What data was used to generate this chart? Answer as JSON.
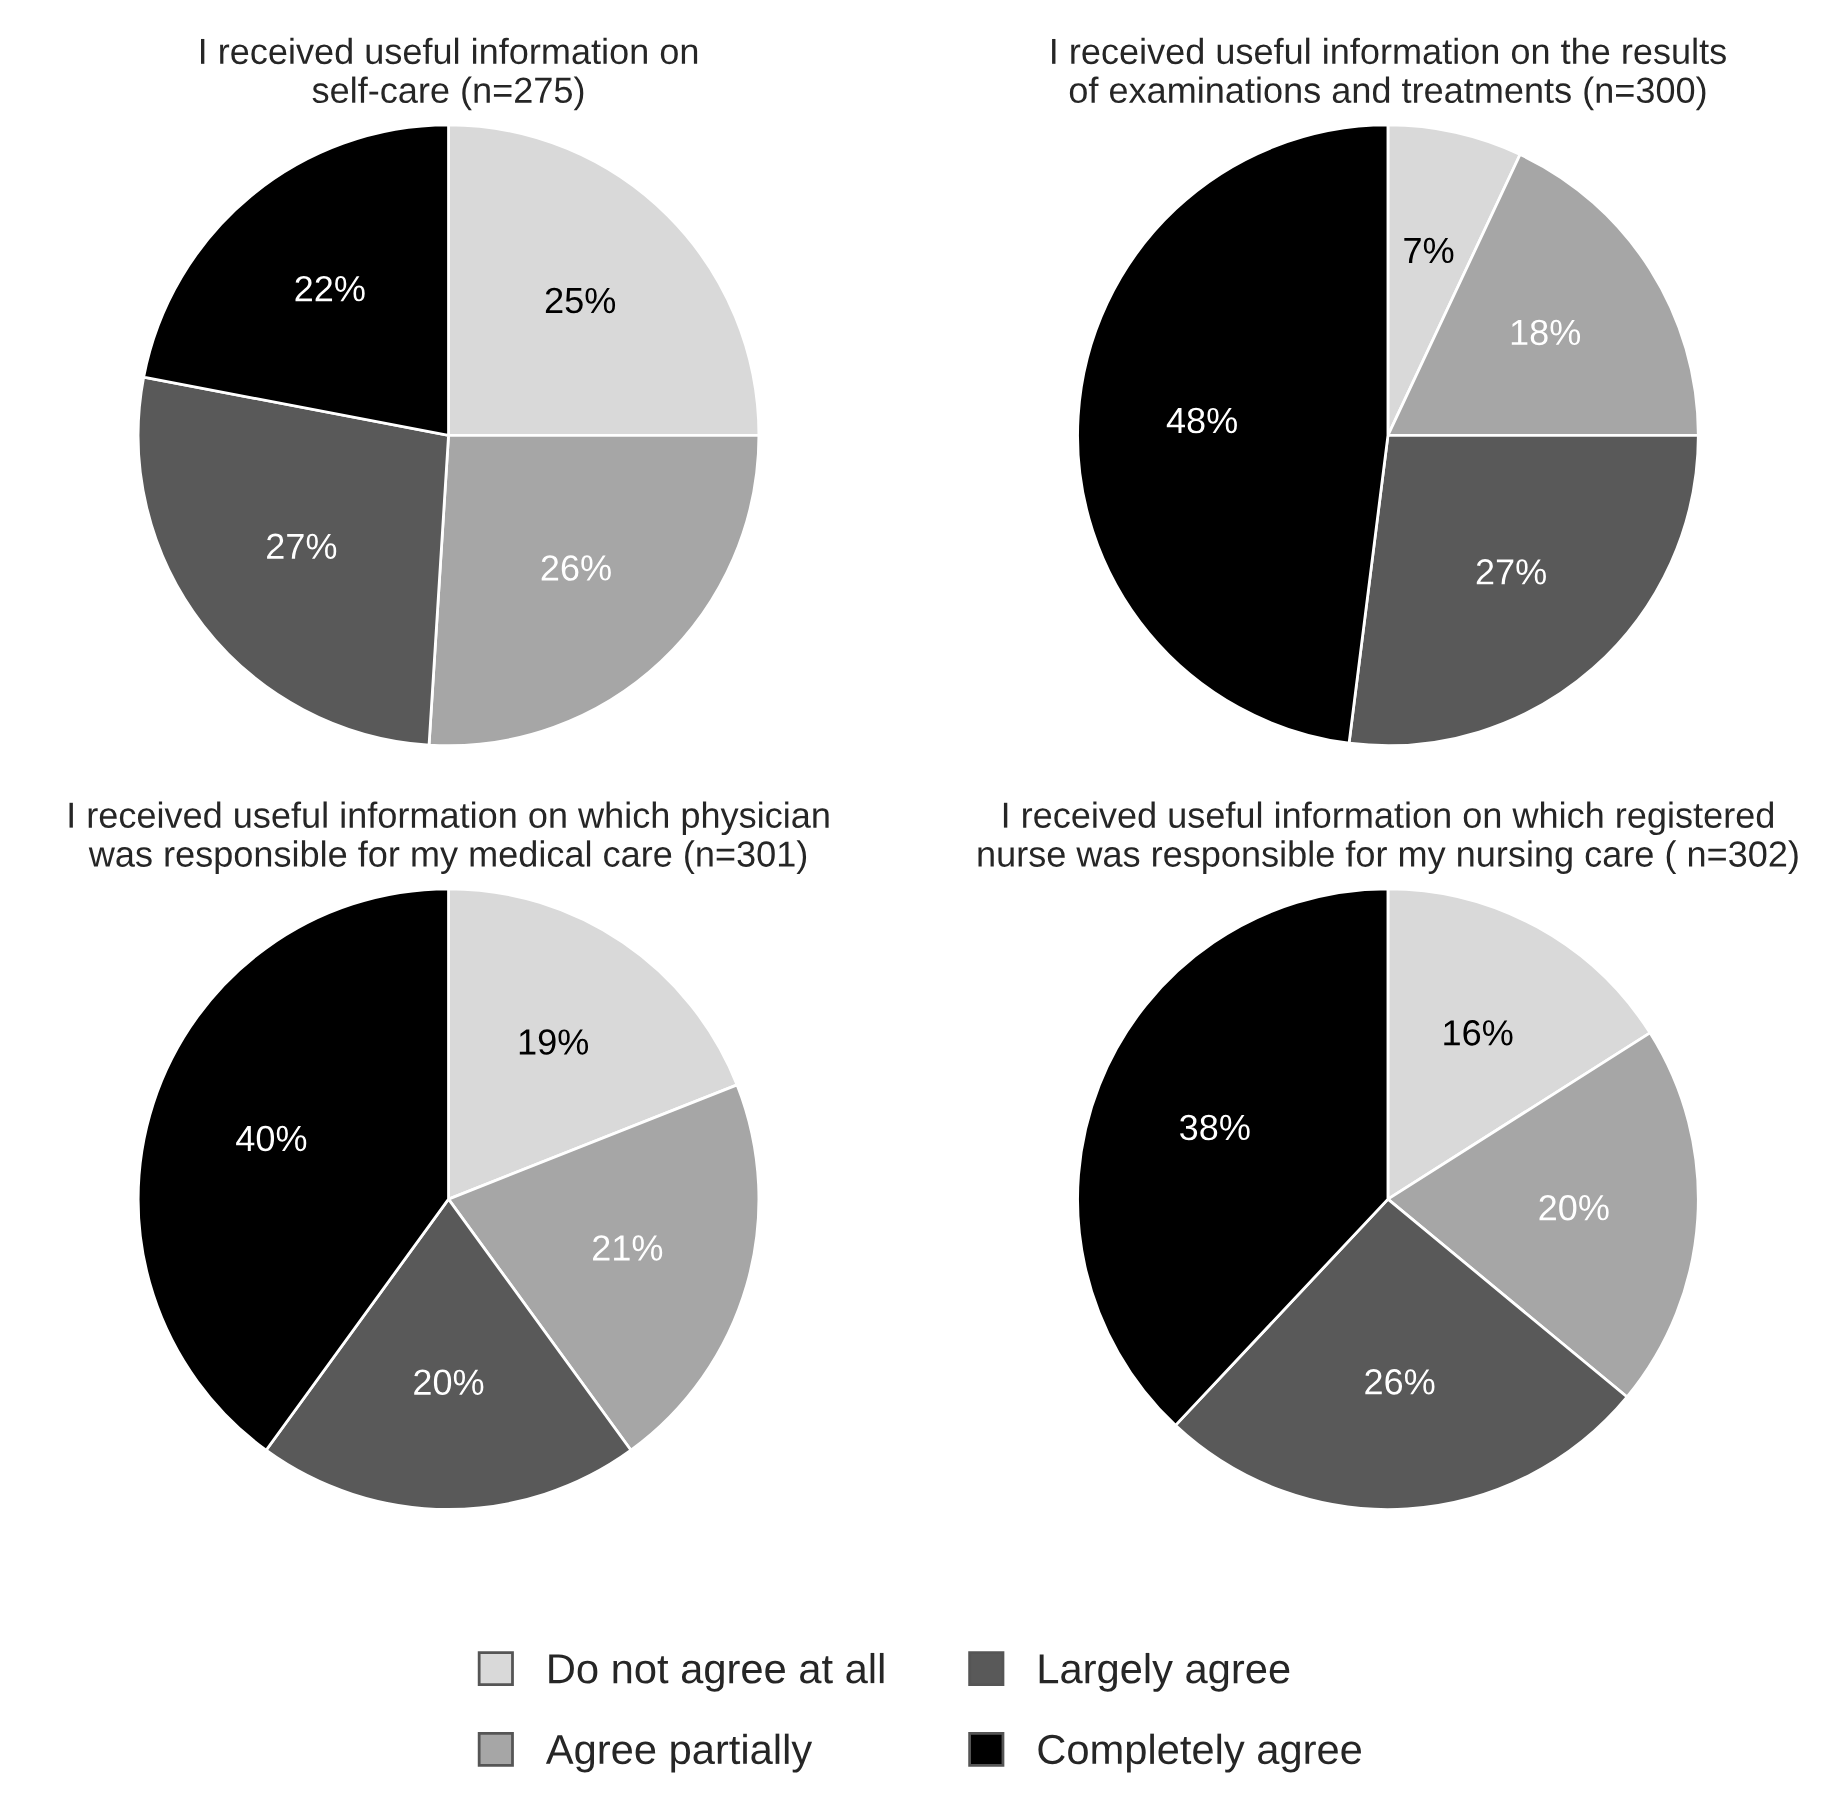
{
  "chart_data": [
    {
      "type": "pie",
      "title": "I received useful information on\nself-care (n=275)",
      "categories": [
        "Do not agree at all",
        "Agree partially",
        "Largely agree",
        "Completely agree"
      ],
      "values": [
        25,
        26,
        27,
        22
      ],
      "value_labels": [
        "25%",
        "26%",
        "27%",
        "22%"
      ],
      "colors": [
        "#d9d9d9",
        "#a6a6a6",
        "#595959",
        "#000000"
      ],
      "legend": "bottom"
    },
    {
      "type": "pie",
      "title": "I received useful information on the results\nof examinations and treatments (n=300)",
      "categories": [
        null,
        null,
        null,
        null
      ],
      "values": [
        7,
        18,
        27,
        48
      ],
      "value_labels": [
        "7%",
        "18%",
        "27%",
        "48%"
      ],
      "colors": [
        "#d9d9d9",
        "#a6a6a6",
        "#595959",
        "#000000"
      ]
    },
    {
      "type": "pie",
      "title": "I received useful information on which physician\nwas responsible for my medical care (n=301)",
      "categories": [
        null,
        null,
        null,
        null
      ],
      "values": [
        19,
        21,
        20,
        40
      ],
      "value_labels": [
        "19%",
        "21%",
        "20%",
        "40%"
      ],
      "colors": [
        "#d9d9d9",
        "#a6a6a6",
        "#595959",
        "#000000"
      ]
    },
    {
      "type": "pie",
      "title": "I received useful information on which registered\nnurse was responsible for my nursing care ( n=302)",
      "categories": [
        null,
        null,
        null,
        null
      ],
      "values": [
        16,
        20,
        26,
        38
      ],
      "value_labels": [
        "16%",
        "20%",
        "26%",
        "38%"
      ],
      "colors": [
        "#d9d9d9",
        "#a6a6a6",
        "#595959",
        "#000000"
      ]
    }
  ]
}
